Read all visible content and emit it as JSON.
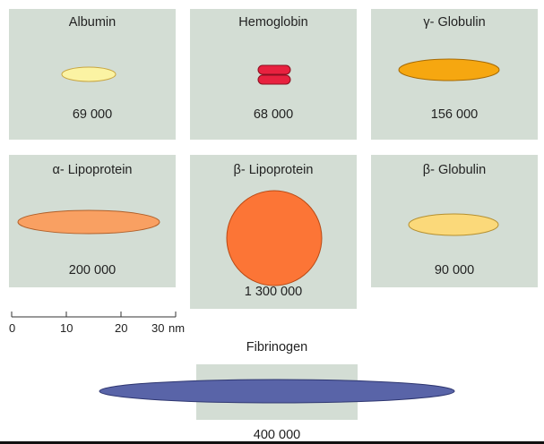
{
  "proteins": [
    {
      "id": "albumin",
      "name": "Albumin",
      "mass": "69 000",
      "color": "#fbf3a3"
    },
    {
      "id": "hemoglobin",
      "name": "Hemoglobin",
      "mass": "68 000",
      "color": "#e8213f"
    },
    {
      "id": "gamma",
      "name": "γ- Globulin",
      "mass": "156 000",
      "color": "#f6a710"
    },
    {
      "id": "alpha",
      "name": "α- Lipoprotein",
      "mass": "200 000",
      "color": "#f9a062"
    },
    {
      "id": "beta-lipo",
      "name": "β- Lipoprotein",
      "mass": "1 300 000",
      "color": "#fc7536"
    },
    {
      "id": "beta-glob",
      "name": "β- Globulin",
      "mass": "90 000",
      "color": "#fbd97a"
    },
    {
      "id": "fibrinogen",
      "name": "Fibrinogen",
      "mass": "400 000",
      "color": "#5964a8"
    }
  ],
  "panel_color": "#d3ddd4",
  "scale": {
    "ticks": [
      "0",
      "10",
      "20",
      "30"
    ],
    "unit": "nm"
  }
}
